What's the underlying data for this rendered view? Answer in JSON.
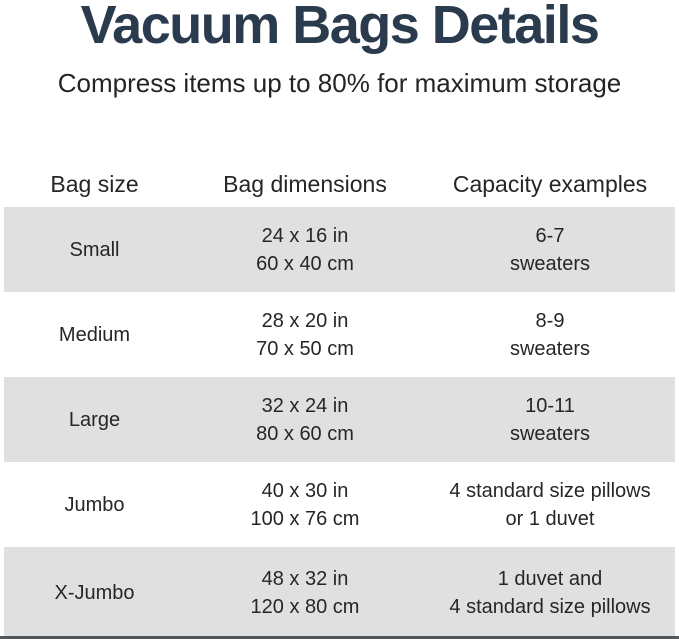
{
  "page": {
    "title": "Vacuum Bags Details",
    "subtitle": "Compress items up to 80% for maximum storage"
  },
  "table": {
    "headers": [
      "Bag size",
      "Bag dimensions",
      "Capacity examples"
    ],
    "rows": [
      {
        "size": "Small",
        "dimensions_in": "24 x 16 in",
        "dimensions_cm": "60 x 40 cm",
        "capacity_line1": "6-7",
        "capacity_line2": "sweaters"
      },
      {
        "size": "Medium",
        "dimensions_in": "28 x 20 in",
        "dimensions_cm": "70 x 50 cm",
        "capacity_line1": "8-9",
        "capacity_line2": "sweaters"
      },
      {
        "size": "Large",
        "dimensions_in": "32 x 24 in",
        "dimensions_cm": "80 x 60 cm",
        "capacity_line1": "10-11",
        "capacity_line2": "sweaters"
      },
      {
        "size": "Jumbo",
        "dimensions_in": "40 x 30 in",
        "dimensions_cm": "100 x 76 cm",
        "capacity_line1": "4 standard size pillows",
        "capacity_line2": "or 1 duvet"
      },
      {
        "size": "X-Jumbo",
        "dimensions_in": "48 x 32 in",
        "dimensions_cm": "120 x 80 cm",
        "capacity_line1": "1 duvet and",
        "capacity_line2": "4 standard size pillows"
      }
    ]
  },
  "colors": {
    "title_text": "#2b3b4e",
    "body_text": "#262626",
    "row_stripe": "#e0e0e0",
    "bottom_rule": "#54575a",
    "background": "#ffffff"
  }
}
